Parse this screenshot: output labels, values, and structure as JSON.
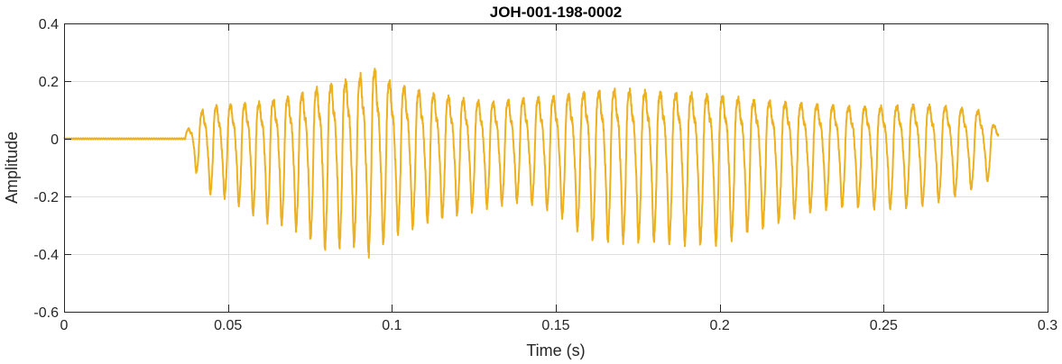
{
  "chart_data": {
    "type": "line",
    "title": "JOH-001-198-0002",
    "xlabel": "Time (s)",
    "ylabel": "Amplitude",
    "xlim": [
      0,
      0.3
    ],
    "ylim": [
      -0.6,
      0.4
    ],
    "xticks": [
      0,
      0.05,
      0.1,
      0.15,
      0.2,
      0.25,
      0.3
    ],
    "xtick_labels": [
      "0",
      "0.05",
      "0.1",
      "0.15",
      "0.2",
      "0.25",
      "0.3"
    ],
    "yticks": [
      -0.6,
      -0.4,
      -0.2,
      0,
      0.2,
      0.4
    ],
    "ytick_labels": [
      "-0.6",
      "-0.4",
      "-0.2",
      "0",
      "0.2",
      "0.4"
    ],
    "grid": true,
    "series_color": "#EDB120",
    "series": [
      {
        "signal_start": 0.0,
        "signal_end": 0.285,
        "onset": 0.037,
        "x": [
          0.0,
          0.037,
          0.043,
          0.05,
          0.06,
          0.07,
          0.08,
          0.09,
          0.093,
          0.1,
          0.11,
          0.12,
          0.13,
          0.14,
          0.15,
          0.16,
          0.17,
          0.18,
          0.19,
          0.2,
          0.21,
          0.22,
          0.23,
          0.24,
          0.25,
          0.26,
          0.27,
          0.28,
          0.285
        ],
        "upper_envelope": [
          0.0,
          0.03,
          0.15,
          0.16,
          0.17,
          0.2,
          0.25,
          0.29,
          0.35,
          0.26,
          0.22,
          0.19,
          0.17,
          0.19,
          0.2,
          0.22,
          0.23,
          0.22,
          0.21,
          0.2,
          0.18,
          0.17,
          0.16,
          0.15,
          0.15,
          0.16,
          0.15,
          0.13,
          0.04
        ],
        "lower_envelope": [
          0.0,
          -0.03,
          -0.2,
          -0.22,
          -0.3,
          -0.33,
          -0.41,
          -0.39,
          -0.43,
          -0.36,
          -0.31,
          -0.28,
          -0.25,
          -0.23,
          -0.27,
          -0.37,
          -0.38,
          -0.38,
          -0.39,
          -0.39,
          -0.34,
          -0.3,
          -0.26,
          -0.25,
          -0.26,
          -0.25,
          -0.22,
          -0.17,
          -0.13
        ]
      }
    ]
  }
}
